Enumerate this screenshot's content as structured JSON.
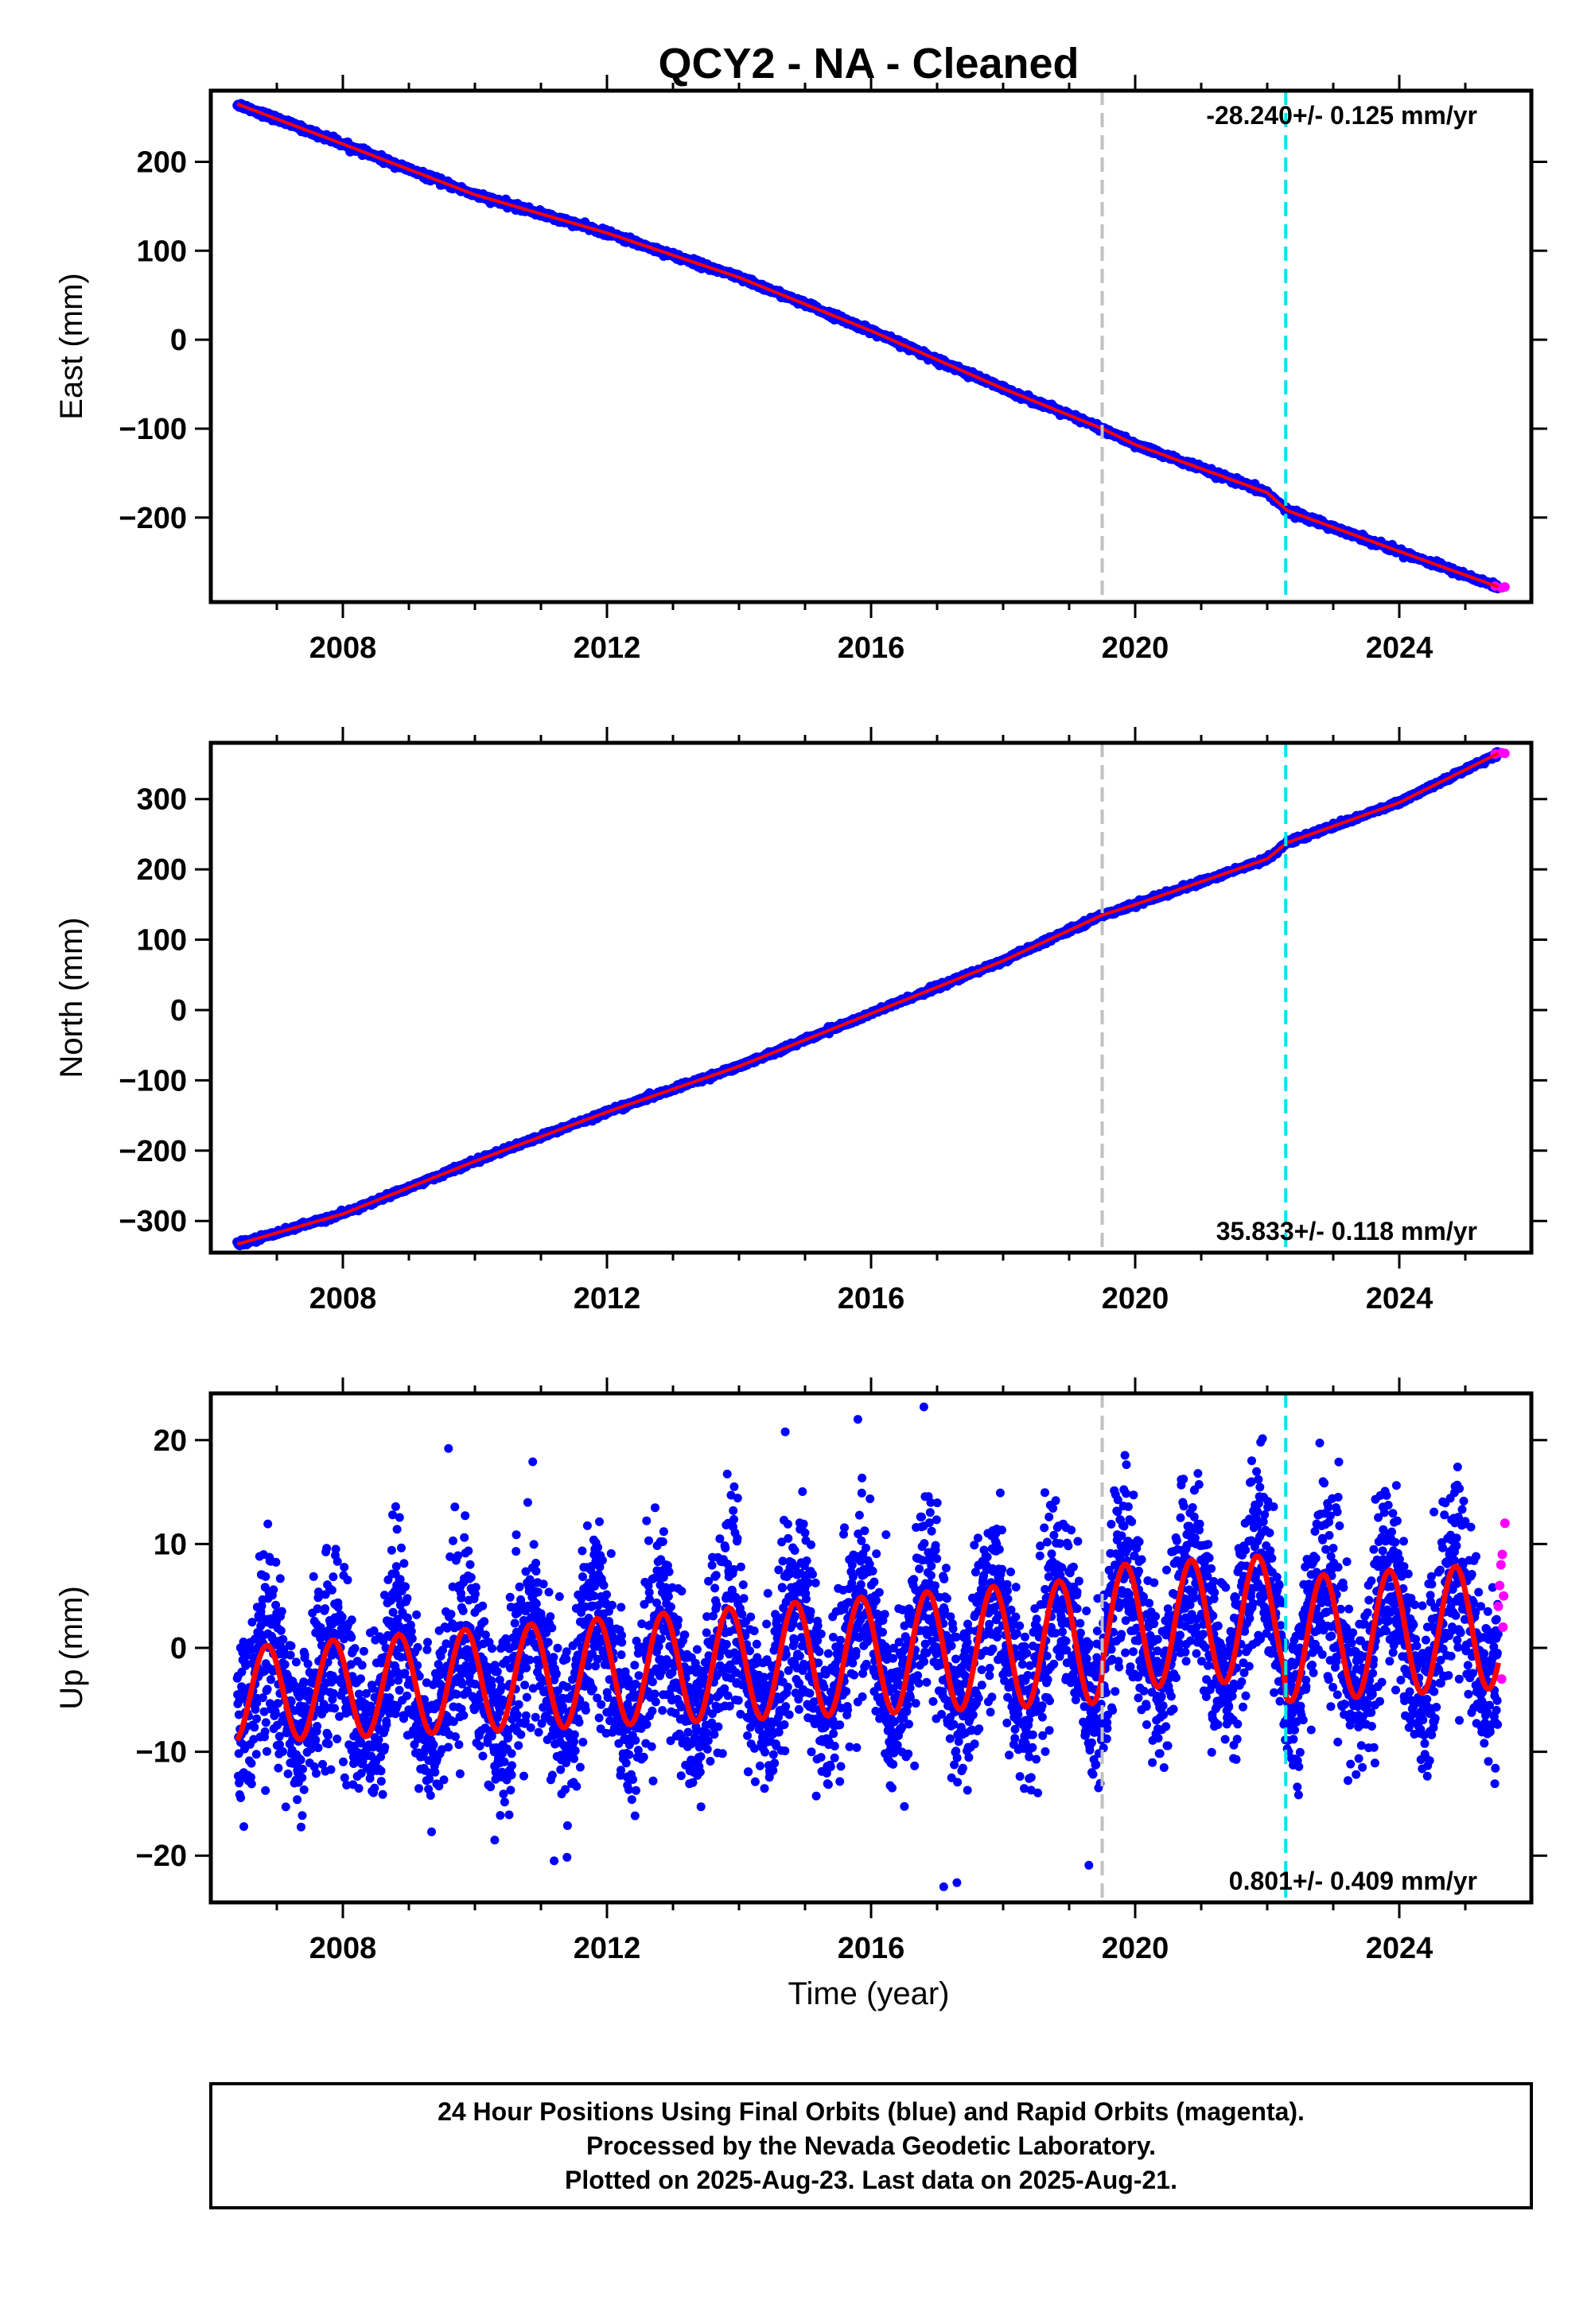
{
  "chart_data": [
    {
      "type": "scatter",
      "title": "QCY2  - NA - Cleaned",
      "xlabel": "",
      "ylabel": "East (mm)",
      "xlim": [
        2006.0,
        2026.0
      ],
      "ylim": [
        -295,
        280
      ],
      "xticks": [
        2008,
        2012,
        2016,
        2020,
        2024
      ],
      "yticks": [
        200,
        100,
        0,
        -100,
        -200
      ],
      "vlines": [
        {
          "x": 2019.5,
          "color": "#c0c0c0",
          "style": "dashed"
        },
        {
          "x": 2022.28,
          "color": "#00e5ee",
          "style": "dashed"
        }
      ],
      "rate_label": "-28.240+/- 0.125 mm/yr",
      "rate_label_position": "top-right",
      "series": [
        {
          "kind": "points",
          "color": "#0000ff",
          "description_x": [
            2006.4,
            2025.5
          ],
          "x": [
            2006.4,
            2008.0,
            2010.0,
            2012.0,
            2014.0,
            2016.0,
            2018.0,
            2019.5,
            2020.0,
            2022.0,
            2022.3,
            2024.0,
            2025.5
          ],
          "y": [
            265,
            220,
            163,
            120,
            70,
            10,
            -55,
            -100,
            -118,
            -172,
            -192,
            -238,
            -278
          ]
        },
        {
          "kind": "points",
          "color": "#ff00ff",
          "x": [
            2025.45,
            2025.55,
            2025.6
          ],
          "y": [
            -277,
            -279,
            -278
          ]
        },
        {
          "kind": "fit",
          "color": "#ff0000",
          "x": [
            2006.4,
            2008.0,
            2010.0,
            2012.0,
            2014.0,
            2016.0,
            2018.0,
            2019.5,
            2020.0,
            2022.0,
            2022.3,
            2024.0,
            2025.5
          ],
          "y": [
            265,
            220,
            163,
            120,
            70,
            10,
            -55,
            -100,
            -118,
            -172,
            -192,
            -238,
            -278
          ]
        }
      ]
    },
    {
      "type": "scatter",
      "xlabel": "",
      "ylabel": "North (mm)",
      "xlim": [
        2006.0,
        2026.0
      ],
      "ylim": [
        -345,
        380
      ],
      "xticks": [
        2008,
        2012,
        2016,
        2020,
        2024
      ],
      "yticks": [
        300,
        200,
        100,
        0,
        -100,
        -200,
        -300
      ],
      "vlines": [
        {
          "x": 2019.5,
          "color": "#c0c0c0",
          "style": "dashed"
        },
        {
          "x": 2022.28,
          "color": "#00e5ee",
          "style": "dashed"
        }
      ],
      "rate_label": "35.833+/- 0.118 mm/yr",
      "rate_label_position": "bottom-right",
      "series": [
        {
          "kind": "points",
          "color": "#0000ff",
          "x": [
            2006.4,
            2008.0,
            2010.0,
            2012.0,
            2014.0,
            2016.0,
            2018.0,
            2019.5,
            2020.0,
            2022.0,
            2022.3,
            2024.0,
            2025.5
          ],
          "y": [
            -333,
            -290,
            -215,
            -145,
            -80,
            -5,
            70,
            135,
            150,
            215,
            238,
            295,
            365
          ]
        },
        {
          "kind": "points",
          "color": "#ff00ff",
          "x": [
            2025.45,
            2025.55,
            2025.6
          ],
          "y": [
            364,
            366,
            365
          ]
        },
        {
          "kind": "fit",
          "color": "#ff0000",
          "x": [
            2006.4,
            2008.0,
            2010.0,
            2012.0,
            2014.0,
            2016.0,
            2018.0,
            2019.5,
            2020.0,
            2022.0,
            2022.3,
            2024.0,
            2025.5
          ],
          "y": [
            -333,
            -290,
            -215,
            -145,
            -80,
            -5,
            70,
            135,
            150,
            215,
            238,
            295,
            365
          ]
        }
      ]
    },
    {
      "type": "scatter",
      "xlabel": "Time (year)",
      "ylabel": "Up (mm)",
      "xlim": [
        2006.0,
        2026.0
      ],
      "ylim": [
        -24.5,
        24.5
      ],
      "xticks": [
        2008,
        2012,
        2016,
        2020,
        2024
      ],
      "yticks": [
        20,
        10,
        0,
        -10,
        -20
      ],
      "vlines": [
        {
          "x": 2019.5,
          "color": "#c0c0c0",
          "style": "dashed"
        },
        {
          "x": 2022.28,
          "color": "#00e5ee",
          "style": "dashed"
        }
      ],
      "rate_label": "0.801+/- 0.409 mm/yr",
      "rate_label_position": "bottom-right",
      "seasonal_fit": {
        "color": "#ff0000",
        "mean": 0.0,
        "trend_mm_per_yr": 0.801,
        "amplitude_mm": [
          4.5,
          6.0
        ],
        "peaks": [
          2006.85,
          2007.85,
          2008.85,
          2009.85,
          2010.85,
          2011.85,
          2012.85,
          2013.85,
          2014.85,
          2015.85,
          2016.85,
          2017.85,
          2018.85,
          2019.85,
          2020.85,
          2021.85,
          2022.85,
          2023.85,
          2024.85
        ],
        "offsets": [
          {
            "x": 2019.5,
            "step": 4.0
          },
          {
            "x": 2022.28,
            "step": -8.0
          }
        ]
      },
      "series": [
        {
          "kind": "points",
          "color": "#0000ff",
          "outliers": [
            {
              "x": 2009.6,
              "y": 19.2
            },
            {
              "x": 2016.8,
              "y": 23.2
            },
            {
              "x": 2015.8,
              "y": 22.0
            },
            {
              "x": 2017.1,
              "y": -23.0
            },
            {
              "x": 2017.3,
              "y": -22.6
            },
            {
              "x": 2011.2,
              "y": -20.5
            },
            {
              "x": 2010.3,
              "y": -18.5
            },
            {
              "x": 2006.5,
              "y": -17.2
            },
            {
              "x": 2021.9,
              "y": 19.8
            },
            {
              "x": 2014.7,
              "y": 20.8
            },
            {
              "x": 2008.8,
              "y": 13.6
            },
            {
              "x": 2010.8,
              "y": 14.0
            }
          ]
        },
        {
          "kind": "points",
          "color": "#ff00ff",
          "x": [
            2025.5,
            2025.52,
            2025.54,
            2025.56,
            2025.58,
            2025.6,
            2025.55,
            2025.57
          ],
          "y": [
            4.0,
            6.0,
            8.0,
            9.0,
            5.0,
            12.0,
            -3.0,
            2.0
          ]
        }
      ]
    }
  ],
  "footer": {
    "line1": "24 Hour Positions Using Final Orbits (blue) and Rapid Orbits (magenta).",
    "line2": "Processed by the Nevada Geodetic Laboratory.",
    "line3": "Plotted on 2025-Aug-23. Last data on 2025-Aug-21."
  }
}
